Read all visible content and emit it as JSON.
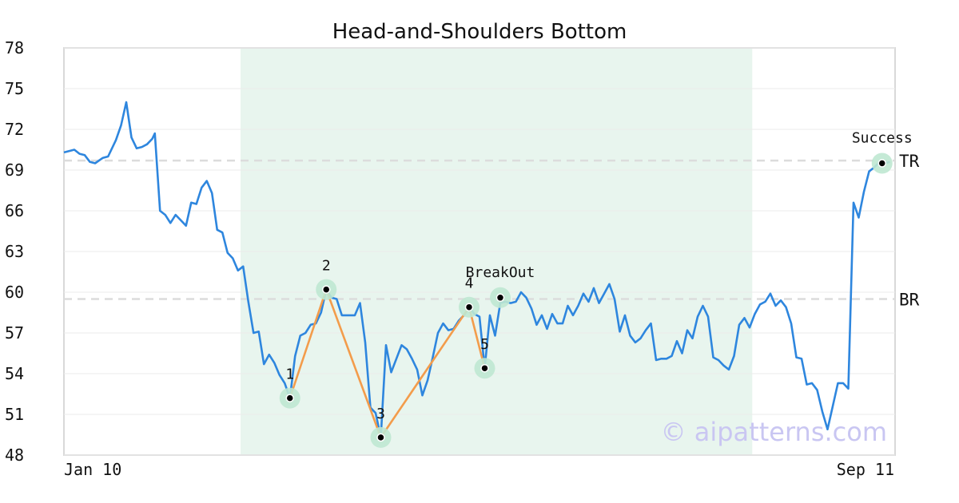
{
  "chart_data": {
    "type": "line",
    "title": "Head-and-Shoulders Bottom",
    "ylim": [
      48,
      78
    ],
    "yticks": [
      48,
      51,
      54,
      57,
      60,
      63,
      66,
      69,
      72,
      75,
      78
    ],
    "x_start_label": "Jan 10",
    "x_end_label": "Sep 11",
    "n_days": 245,
    "pattern_range_days": [
      68,
      265
    ],
    "colors": {
      "price": "#2e86de",
      "pattern": "#f39c4b",
      "highlight": "#e8f5ee",
      "marker_halo": "#bfe8d2",
      "level": "#dcdcdc"
    },
    "levels": [
      {
        "name": "TR",
        "value": 69.7
      },
      {
        "name": "BR",
        "value": 59.5
      }
    ],
    "series": [
      {
        "values": [
          [
            0,
            70.3
          ],
          [
            4,
            70.5
          ],
          [
            6,
            70.2
          ],
          [
            8,
            70.1
          ],
          [
            10,
            69.6
          ],
          [
            12,
            69.5
          ],
          [
            15,
            69.9
          ],
          [
            17,
            70.0
          ],
          [
            20,
            71.2
          ],
          [
            22,
            72.3
          ],
          [
            24,
            74.0
          ],
          [
            26,
            71.4
          ],
          [
            28,
            70.6
          ],
          [
            30,
            70.7
          ],
          [
            32,
            70.9
          ],
          [
            34,
            71.3
          ],
          [
            35,
            71.7
          ],
          [
            37,
            66.0
          ],
          [
            39,
            65.7
          ],
          [
            41,
            65.1
          ],
          [
            43,
            65.7
          ],
          [
            45,
            65.3
          ],
          [
            47,
            64.9
          ],
          [
            49,
            66.6
          ],
          [
            51,
            66.5
          ],
          [
            53,
            67.7
          ],
          [
            55,
            68.2
          ],
          [
            57,
            67.3
          ],
          [
            59,
            64.6
          ],
          [
            61,
            64.4
          ],
          [
            63,
            62.9
          ],
          [
            65,
            62.5
          ],
          [
            67,
            61.6
          ],
          [
            69,
            61.9
          ],
          [
            71,
            59.3
          ],
          [
            73,
            57.0
          ],
          [
            75,
            57.1
          ],
          [
            77,
            54.7
          ],
          [
            79,
            55.4
          ],
          [
            81,
            54.8
          ],
          [
            83,
            53.9
          ],
          [
            85,
            53.3
          ],
          [
            87,
            52.2
          ],
          [
            89,
            55.3
          ],
          [
            91,
            56.8
          ],
          [
            93,
            57.0
          ],
          [
            95,
            57.6
          ],
          [
            97,
            57.7
          ],
          [
            99,
            58.5
          ],
          [
            101,
            60.2
          ],
          [
            103,
            59.6
          ],
          [
            105,
            59.5
          ],
          [
            107,
            58.3
          ],
          [
            110,
            58.3
          ],
          [
            112,
            58.3
          ],
          [
            114,
            59.2
          ],
          [
            116,
            56.3
          ],
          [
            118,
            51.5
          ],
          [
            120,
            51.1
          ],
          [
            122,
            49.3
          ],
          [
            124,
            56.1
          ],
          [
            126,
            54.1
          ],
          [
            128,
            55.1
          ],
          [
            130,
            56.1
          ],
          [
            132,
            55.8
          ],
          [
            134,
            55.1
          ],
          [
            136,
            54.3
          ],
          [
            138,
            52.4
          ],
          [
            140,
            53.5
          ],
          [
            142,
            55.2
          ],
          [
            144,
            57.0
          ],
          [
            146,
            57.7
          ],
          [
            148,
            57.2
          ],
          [
            150,
            57.3
          ],
          [
            152,
            57.9
          ],
          [
            154,
            58.3
          ],
          [
            156,
            58.9
          ],
          [
            158,
            58.4
          ],
          [
            160,
            58.2
          ],
          [
            162,
            54.4
          ],
          [
            164,
            58.3
          ],
          [
            166,
            56.8
          ],
          [
            168,
            59.2
          ],
          [
            170,
            59.3
          ],
          [
            172,
            59.2
          ],
          [
            174,
            59.3
          ],
          [
            176,
            60.0
          ],
          [
            178,
            59.6
          ],
          [
            180,
            58.8
          ],
          [
            182,
            57.6
          ],
          [
            184,
            58.3
          ],
          [
            186,
            57.3
          ],
          [
            188,
            58.4
          ],
          [
            190,
            57.7
          ],
          [
            192,
            57.7
          ],
          [
            194,
            59.0
          ],
          [
            196,
            58.3
          ],
          [
            198,
            59.0
          ],
          [
            200,
            59.9
          ],
          [
            202,
            59.3
          ],
          [
            204,
            60.3
          ],
          [
            206,
            59.2
          ],
          [
            208,
            59.9
          ],
          [
            210,
            60.6
          ],
          [
            212,
            59.5
          ],
          [
            214,
            57.1
          ],
          [
            216,
            58.3
          ],
          [
            218,
            56.8
          ],
          [
            220,
            56.3
          ],
          [
            222,
            56.6
          ],
          [
            224,
            57.2
          ],
          [
            226,
            57.7
          ],
          [
            228,
            55.0
          ],
          [
            230,
            55.1
          ],
          [
            232,
            55.1
          ],
          [
            234,
            55.3
          ],
          [
            236,
            56.4
          ],
          [
            238,
            55.5
          ],
          [
            240,
            57.2
          ],
          [
            242,
            56.6
          ],
          [
            244,
            58.2
          ],
          [
            246,
            59.0
          ],
          [
            248,
            58.2
          ],
          [
            250,
            55.2
          ],
          [
            252,
            55.0
          ],
          [
            254,
            54.6
          ],
          [
            256,
            54.3
          ],
          [
            258,
            55.3
          ],
          [
            260,
            57.6
          ],
          [
            262,
            58.1
          ],
          [
            264,
            57.4
          ],
          [
            266,
            58.4
          ],
          [
            268,
            59.1
          ],
          [
            270,
            59.3
          ],
          [
            272,
            59.9
          ],
          [
            274,
            59.0
          ],
          [
            276,
            59.4
          ],
          [
            278,
            58.9
          ],
          [
            280,
            57.7
          ],
          [
            282,
            55.2
          ],
          [
            284,
            55.1
          ],
          [
            286,
            53.2
          ],
          [
            288,
            53.3
          ],
          [
            290,
            52.8
          ],
          [
            292,
            51.2
          ],
          [
            294,
            49.9
          ],
          [
            296,
            51.6
          ],
          [
            298,
            53.3
          ],
          [
            300,
            53.3
          ],
          [
            302,
            52.9
          ],
          [
            304,
            66.6
          ],
          [
            306,
            65.5
          ],
          [
            308,
            67.4
          ],
          [
            310,
            68.9
          ],
          [
            312,
            69.2
          ],
          [
            314,
            69.6
          ],
          [
            316,
            69.5
          ],
          [
            318,
            69.6
          ]
        ]
      }
    ],
    "pattern_points": [
      {
        "label": "1",
        "x": 87,
        "y": 52.2
      },
      {
        "label": "2",
        "x": 101,
        "y": 60.2
      },
      {
        "label": "3",
        "x": 122,
        "y": 49.3
      },
      {
        "label": "4",
        "x": 156,
        "y": 58.9
      },
      {
        "label": "5",
        "x": 162,
        "y": 54.4
      }
    ],
    "events": [
      {
        "label": "BreakOut",
        "x": 168,
        "y": 59.6
      },
      {
        "label": "Success",
        "x": 315,
        "y": 69.5
      }
    ],
    "watermark": "© aipatterns.com"
  }
}
